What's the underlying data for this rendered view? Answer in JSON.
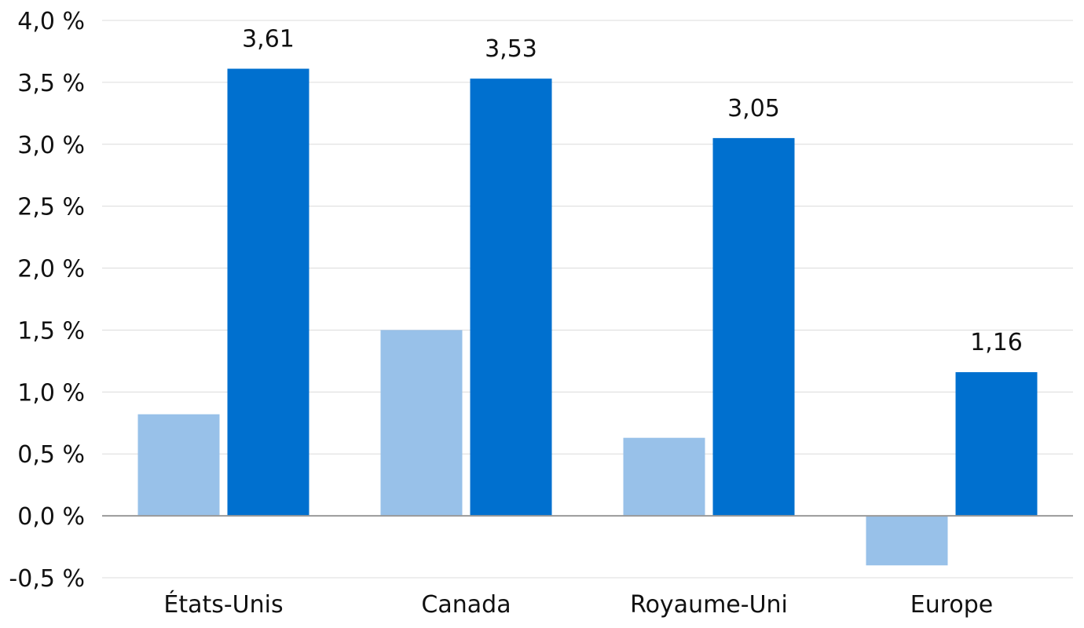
{
  "chart_data": {
    "type": "bar",
    "categories": [
      "États-Unis",
      "Canada",
      "Royaume-Uni",
      "Europe"
    ],
    "series": [
      {
        "values": [
          0.82,
          1.5,
          0.63,
          -0.4
        ],
        "color": "#98c1e9",
        "labels": [
          "",
          "",
          "",
          ""
        ]
      },
      {
        "values": [
          3.61,
          3.53,
          3.05,
          1.16
        ],
        "color": "#0070cf",
        "labels": [
          "3,61",
          "3,53",
          "3,05",
          "1,16"
        ]
      }
    ],
    "y_ticks": [
      -0.5,
      0.0,
      0.5,
      1.0,
      1.5,
      2.0,
      2.5,
      3.0,
      3.5,
      4.0
    ],
    "y_tick_labels": [
      "-0,5 %",
      "0,0 %",
      "0,5 %",
      "1,0 %",
      "1,5 %",
      "2,0 %",
      "2,5 %",
      "3,0 %",
      "3,5 %",
      "4,0 %"
    ],
    "ylim": [
      -0.5,
      4.0
    ],
    "grid": true,
    "title": "",
    "xlabel": "",
    "ylabel": ""
  }
}
